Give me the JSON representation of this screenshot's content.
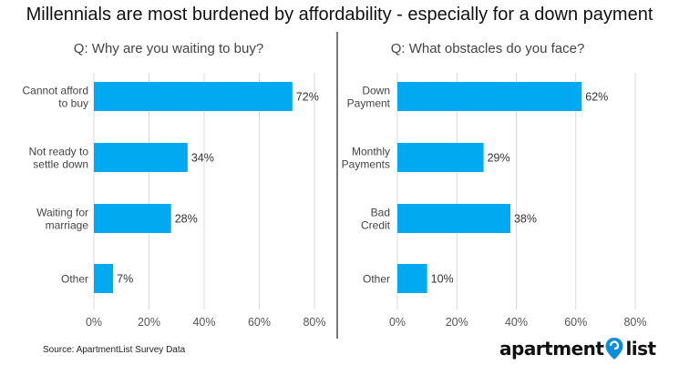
{
  "title": "Millennials are most burdened by affordability - especially for a down payment",
  "source": "Source: ApartmentList Survey Data",
  "logo": {
    "left": "apartment",
    "right": "list"
  },
  "colors": {
    "bar": "#00a9f0",
    "grid": "#d9d9d9",
    "divider": "#222222",
    "text": "#333333",
    "pin": "#0a8fd8"
  },
  "chart_data": [
    {
      "type": "bar",
      "orientation": "horizontal",
      "title": "Q: Why are you waiting to buy?",
      "categories": [
        "Cannot afford\nto buy",
        "Not ready to\nsettle down",
        "Waiting for\nmarriage",
        "Other"
      ],
      "values": [
        72,
        34,
        28,
        7
      ],
      "value_labels": [
        "72%",
        "34%",
        "28%",
        "7%"
      ],
      "xlim": [
        0,
        80
      ],
      "ticks": [
        0,
        20,
        40,
        60,
        80
      ],
      "tick_labels": [
        "0%",
        "20%",
        "40%",
        "60%",
        "80%"
      ],
      "grid": true
    },
    {
      "type": "bar",
      "orientation": "horizontal",
      "title": "Q: What obstacles do you face?",
      "categories": [
        "Down\nPayment",
        "Monthly\nPayments",
        "Bad\nCredit",
        "Other"
      ],
      "values": [
        62,
        29,
        38,
        10
      ],
      "value_labels": [
        "62%",
        "29%",
        "38%",
        "10%"
      ],
      "xlim": [
        0,
        80
      ],
      "ticks": [
        0,
        20,
        40,
        60,
        80
      ],
      "tick_labels": [
        "0%",
        "20%",
        "40%",
        "60%",
        "80%"
      ],
      "grid": true
    }
  ]
}
